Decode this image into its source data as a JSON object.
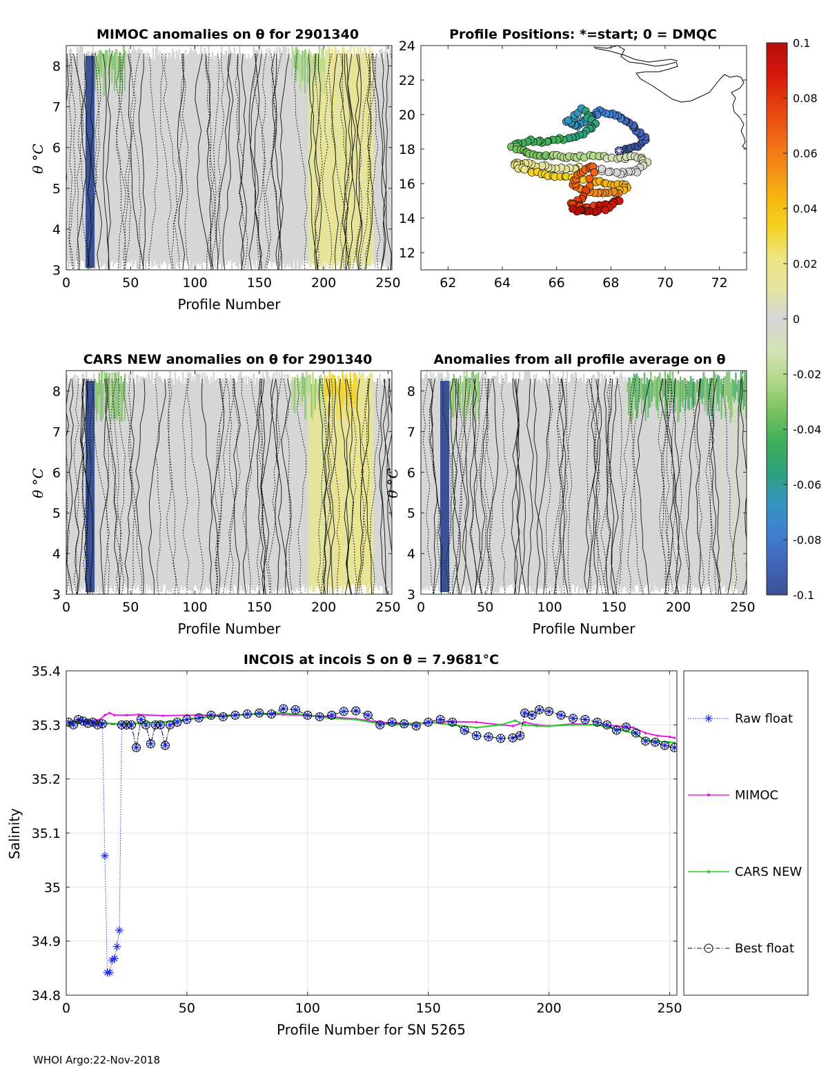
{
  "figure": {
    "footer": "WHOI Argo:22-Nov-2018"
  },
  "colorbar": {
    "ticks": [
      0.1,
      0.08,
      0.06,
      0.04,
      0.02,
      0,
      -0.02,
      -0.04,
      -0.06,
      -0.08,
      -0.1
    ],
    "tick_labels": [
      "0.1",
      "0.08",
      "0.06",
      "0.04",
      "0.02",
      "0",
      "-0.02",
      "-0.04",
      "-0.06",
      "-0.08",
      "-0.1"
    ],
    "range": [
      -0.1,
      0.1
    ],
    "colors": [
      "#3a5294",
      "#4265b8",
      "#3f7fd0",
      "#3496c0",
      "#2ea07a",
      "#3eaf5a",
      "#79c261",
      "#b2d88a",
      "#d4e1b6",
      "#d6d6d6",
      "#e4e4a0",
      "#ede483",
      "#f3d21f",
      "#f5b512",
      "#f48a17",
      "#ee6414",
      "#e43d0e",
      "#d4170b",
      "#b50f0b"
    ]
  },
  "chart_data": [
    {
      "id": "mimoc",
      "type": "heatmap",
      "title": "MIMOC anomalies on θ  for 2901340",
      "xlabel": "Profile Number",
      "ylabel": "θ °C",
      "xlim": [
        0,
        253
      ],
      "ylim": [
        3,
        8.5
      ],
      "xticks": [
        0,
        50,
        100,
        150,
        200,
        250
      ],
      "yticks": [
        3,
        4,
        5,
        6,
        7,
        8
      ],
      "note": "anomaly field mostly ~0 (grey), negative band profiles 15-22, slight positive (yellow) 190-240, negative (green) patches near top 180-200"
    },
    {
      "id": "positions",
      "type": "scatter",
      "title": "Profile Positions: *=start; 0 = DMQC",
      "xlim": [
        61,
        73
      ],
      "ylim": [
        11,
        24
      ],
      "xticks": [
        62,
        64,
        66,
        68,
        70,
        72
      ],
      "yticks": [
        12,
        14,
        16,
        18,
        20,
        22,
        24
      ],
      "start": [
        68.3,
        17.9
      ]
    },
    {
      "id": "cars",
      "type": "heatmap",
      "title": "CARS NEW anomalies on θ for 2901340",
      "xlabel": "Profile Number",
      "ylabel": "θ °C",
      "xlim": [
        0,
        253
      ],
      "ylim": [
        3,
        8.5
      ],
      "xticks": [
        0,
        50,
        100,
        150,
        200,
        250
      ],
      "yticks": [
        3,
        4,
        5,
        6,
        7,
        8
      ]
    },
    {
      "id": "allavg",
      "type": "heatmap",
      "title": "Anomalies from all profile average on θ",
      "xlabel": "Profile Number",
      "ylabel": "θ °C",
      "xlim": [
        0,
        253
      ],
      "ylim": [
        3,
        8.5
      ],
      "xticks": [
        0,
        50,
        100,
        150,
        200,
        250
      ],
      "yticks": [
        3,
        4,
        5,
        6,
        7,
        8
      ]
    },
    {
      "id": "salinity",
      "type": "line",
      "title": "INCOIS at incois S on θ = 7.9681°C",
      "xlabel": "Profile Number for SN 5265",
      "ylabel": "Salinity",
      "xlim": [
        0,
        253
      ],
      "ylim": [
        34.8,
        35.4
      ],
      "xticks": [
        0,
        50,
        100,
        150,
        200,
        250
      ],
      "yticks": [
        34.8,
        34.9,
        35,
        35.1,
        35.2,
        35.3,
        35.4
      ],
      "ytick_labels": [
        "34.8",
        "34.9",
        "35",
        "35.1",
        "35.2",
        "35.3",
        "35.4"
      ],
      "series": [
        {
          "name": "Raw float",
          "color": "#1f2ff0",
          "marker": "star",
          "points": [
            [
              1,
              35.305
            ],
            [
              3,
              35.3
            ],
            [
              5,
              35.31
            ],
            [
              7,
              35.307
            ],
            [
              9,
              35.303
            ],
            [
              11,
              35.305
            ],
            [
              13,
              35.3
            ],
            [
              15,
              35.302
            ],
            [
              16,
              35.058
            ],
            [
              17,
              34.842
            ],
            [
              18,
              34.842
            ],
            [
              19,
              34.865
            ],
            [
              20,
              34.868
            ],
            [
              21,
              34.89
            ],
            [
              22,
              34.92
            ],
            [
              23,
              35.3
            ],
            [
              25,
              35.3
            ],
            [
              27,
              35.3
            ],
            [
              29,
              35.258
            ],
            [
              31,
              35.31
            ],
            [
              33,
              35.3
            ],
            [
              35,
              35.265
            ],
            [
              37,
              35.3
            ],
            [
              39,
              35.3
            ],
            [
              41,
              35.262
            ],
            [
              43,
              35.3
            ],
            [
              46,
              35.305
            ],
            [
              50,
              35.31
            ],
            [
              55,
              35.313
            ],
            [
              60,
              35.318
            ],
            [
              65,
              35.315
            ],
            [
              70,
              35.318
            ],
            [
              75,
              35.32
            ],
            [
              80,
              35.322
            ],
            [
              85,
              35.32
            ],
            [
              90,
              35.33
            ],
            [
              95,
              35.328
            ],
            [
              100,
              35.318
            ],
            [
              105,
              35.315
            ],
            [
              110,
              35.318
            ],
            [
              115,
              35.325
            ],
            [
              120,
              35.326
            ],
            [
              125,
              35.318
            ],
            [
              130,
              35.3
            ],
            [
              135,
              35.305
            ],
            [
              140,
              35.302
            ],
            [
              145,
              35.298
            ],
            [
              150,
              35.305
            ],
            [
              155,
              35.31
            ],
            [
              160,
              35.305
            ],
            [
              165,
              35.29
            ],
            [
              170,
              35.28
            ],
            [
              175,
              35.278
            ],
            [
              180,
              35.275
            ],
            [
              185,
              35.276
            ],
            [
              188,
              35.28
            ],
            [
              190,
              35.322
            ],
            [
              193,
              35.318
            ],
            [
              196,
              35.328
            ],
            [
              200,
              35.325
            ],
            [
              205,
              35.318
            ],
            [
              210,
              35.312
            ],
            [
              215,
              35.31
            ],
            [
              220,
              35.305
            ],
            [
              224,
              35.3
            ],
            [
              228,
              35.29
            ],
            [
              232,
              35.296
            ],
            [
              236,
              35.285
            ],
            [
              240,
              35.27
            ],
            [
              244,
              35.268
            ],
            [
              248,
              35.262
            ],
            [
              252,
              35.258
            ]
          ]
        },
        {
          "name": "MIMOC",
          "color": "#e020e0",
          "marker": "dot",
          "points": [
            [
              1,
              35.305
            ],
            [
              5,
              35.308
            ],
            [
              10,
              35.308
            ],
            [
              14,
              35.31
            ],
            [
              16,
              35.318
            ],
            [
              18,
              35.322
            ],
            [
              20,
              35.318
            ],
            [
              25,
              35.318
            ],
            [
              30,
              35.319
            ],
            [
              40,
              35.317
            ],
            [
              50,
              35.318
            ],
            [
              60,
              35.318
            ],
            [
              70,
              35.318
            ],
            [
              80,
              35.32
            ],
            [
              90,
              35.319
            ],
            [
              100,
              35.317
            ],
            [
              110,
              35.315
            ],
            [
              120,
              35.311
            ],
            [
              130,
              35.305
            ],
            [
              140,
              35.302
            ],
            [
              150,
              35.304
            ],
            [
              160,
              35.306
            ],
            [
              170,
              35.305
            ],
            [
              180,
              35.3
            ],
            [
              185,
              35.298
            ],
            [
              190,
              35.305
            ],
            [
              195,
              35.3
            ],
            [
              200,
              35.298
            ],
            [
              210,
              35.302
            ],
            [
              220,
              35.3
            ],
            [
              228,
              35.298
            ],
            [
              235,
              35.295
            ],
            [
              240,
              35.285
            ],
            [
              245,
              35.28
            ],
            [
              250,
              35.278
            ],
            [
              252,
              35.276
            ]
          ]
        },
        {
          "name": "CARS NEW",
          "color": "#22d022",
          "marker": "dot",
          "points": [
            [
              1,
              35.305
            ],
            [
              5,
              35.305
            ],
            [
              10,
              35.306
            ],
            [
              14,
              35.305
            ],
            [
              20,
              35.302
            ],
            [
              30,
              35.303
            ],
            [
              40,
              35.305
            ],
            [
              50,
              35.31
            ],
            [
              60,
              35.315
            ],
            [
              70,
              35.318
            ],
            [
              80,
              35.32
            ],
            [
              90,
              35.322
            ],
            [
              100,
              35.318
            ],
            [
              110,
              35.312
            ],
            [
              120,
              35.31
            ],
            [
              130,
              35.302
            ],
            [
              140,
              35.3
            ],
            [
              150,
              35.305
            ],
            [
              160,
              35.3
            ],
            [
              170,
              35.295
            ],
            [
              180,
              35.3
            ],
            [
              186,
              35.308
            ],
            [
              190,
              35.3
            ],
            [
              195,
              35.298
            ],
            [
              200,
              35.298
            ],
            [
              210,
              35.3
            ],
            [
              220,
              35.3
            ],
            [
              228,
              35.292
            ],
            [
              235,
              35.285
            ],
            [
              240,
              35.272
            ],
            [
              245,
              35.27
            ],
            [
              250,
              35.268
            ],
            [
              252,
              35.267
            ]
          ]
        },
        {
          "name": "Best float",
          "color": "#000000",
          "marker": "circle",
          "points": [
            [
              1,
              35.305
            ],
            [
              3,
              35.3
            ],
            [
              5,
              35.31
            ],
            [
              7,
              35.307
            ],
            [
              9,
              35.303
            ],
            [
              11,
              35.305
            ],
            [
              13,
              35.3
            ],
            [
              15,
              35.302
            ],
            [
              23,
              35.3
            ],
            [
              25,
              35.3
            ],
            [
              27,
              35.3
            ],
            [
              29,
              35.258
            ],
            [
              31,
              35.31
            ],
            [
              33,
              35.3
            ],
            [
              35,
              35.265
            ],
            [
              37,
              35.3
            ],
            [
              39,
              35.3
            ],
            [
              41,
              35.262
            ],
            [
              43,
              35.3
            ],
            [
              46,
              35.305
            ],
            [
              50,
              35.31
            ],
            [
              55,
              35.313
            ],
            [
              60,
              35.318
            ],
            [
              65,
              35.315
            ],
            [
              70,
              35.318
            ],
            [
              75,
              35.32
            ],
            [
              80,
              35.322
            ],
            [
              85,
              35.32
            ],
            [
              90,
              35.33
            ],
            [
              95,
              35.328
            ],
            [
              100,
              35.318
            ],
            [
              105,
              35.315
            ],
            [
              110,
              35.318
            ],
            [
              115,
              35.325
            ],
            [
              120,
              35.326
            ],
            [
              125,
              35.318
            ],
            [
              130,
              35.3
            ],
            [
              135,
              35.305
            ],
            [
              140,
              35.302
            ],
            [
              145,
              35.298
            ],
            [
              150,
              35.305
            ],
            [
              155,
              35.31
            ],
            [
              160,
              35.305
            ],
            [
              165,
              35.29
            ],
            [
              170,
              35.28
            ],
            [
              175,
              35.278
            ],
            [
              180,
              35.275
            ],
            [
              185,
              35.276
            ],
            [
              188,
              35.28
            ],
            [
              190,
              35.322
            ],
            [
              193,
              35.318
            ],
            [
              196,
              35.328
            ],
            [
              200,
              35.325
            ],
            [
              205,
              35.318
            ],
            [
              210,
              35.312
            ],
            [
              215,
              35.31
            ],
            [
              220,
              35.305
            ],
            [
              224,
              35.3
            ],
            [
              228,
              35.29
            ],
            [
              232,
              35.296
            ],
            [
              236,
              35.285
            ],
            [
              240,
              35.27
            ],
            [
              244,
              35.268
            ],
            [
              248,
              35.262
            ],
            [
              252,
              35.258
            ]
          ]
        }
      ]
    }
  ]
}
